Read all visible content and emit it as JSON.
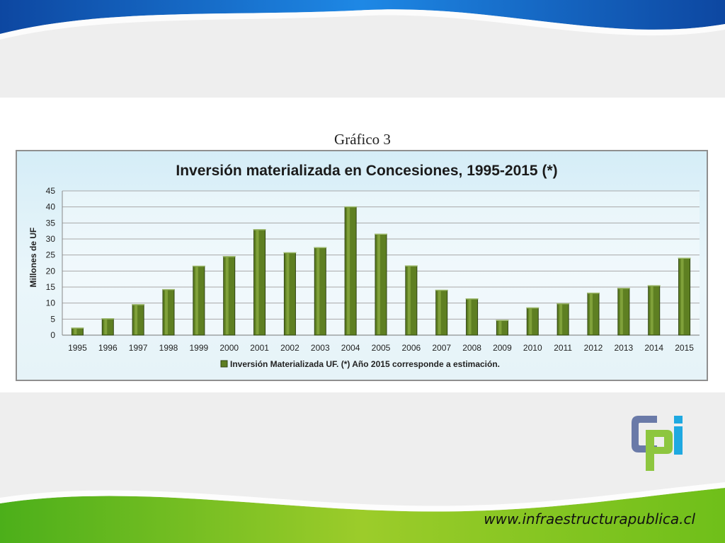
{
  "slide": {
    "heading": "Gráfico 3",
    "website": "www.infraestructurapublica.cl",
    "colors": {
      "top_wave": "#1565c0",
      "bottom_wave": "#7cc21e",
      "bar": "#5e7f22"
    }
  },
  "logo": {
    "name": "cpi-logo",
    "colors": [
      "#6a7aa8",
      "#8dc63f",
      "#1fa9e1"
    ]
  },
  "chart_data": {
    "type": "bar",
    "title": "Inversión materializada en Concesiones, 1995-2015 (*)",
    "ylabel": "Millones de UF",
    "xlabel": "",
    "categories": [
      "1995",
      "1996",
      "1997",
      "1998",
      "1999",
      "2000",
      "2001",
      "2002",
      "2003",
      "2004",
      "2005",
      "2006",
      "2007",
      "2008",
      "2009",
      "2010",
      "2011",
      "2012",
      "2013",
      "2014",
      "2015"
    ],
    "series": [
      {
        "name": "Inversión Materializada UF.  (*) Año 2015 corresponde a estimación.",
        "values": [
          2.2,
          5.1,
          9.5,
          14.2,
          21.5,
          24.5,
          32.9,
          25.7,
          27.3,
          40.0,
          31.5,
          21.6,
          14.0,
          11.3,
          4.6,
          8.5,
          9.8,
          13.1,
          14.6,
          15.4,
          24.0
        ]
      }
    ],
    "ylim": [
      0,
      45
    ],
    "yticks": [
      "0",
      "5",
      "10",
      "15",
      "20",
      "25",
      "30",
      "35",
      "40",
      "45"
    ],
    "grid": true,
    "legend_position": "bottom"
  }
}
